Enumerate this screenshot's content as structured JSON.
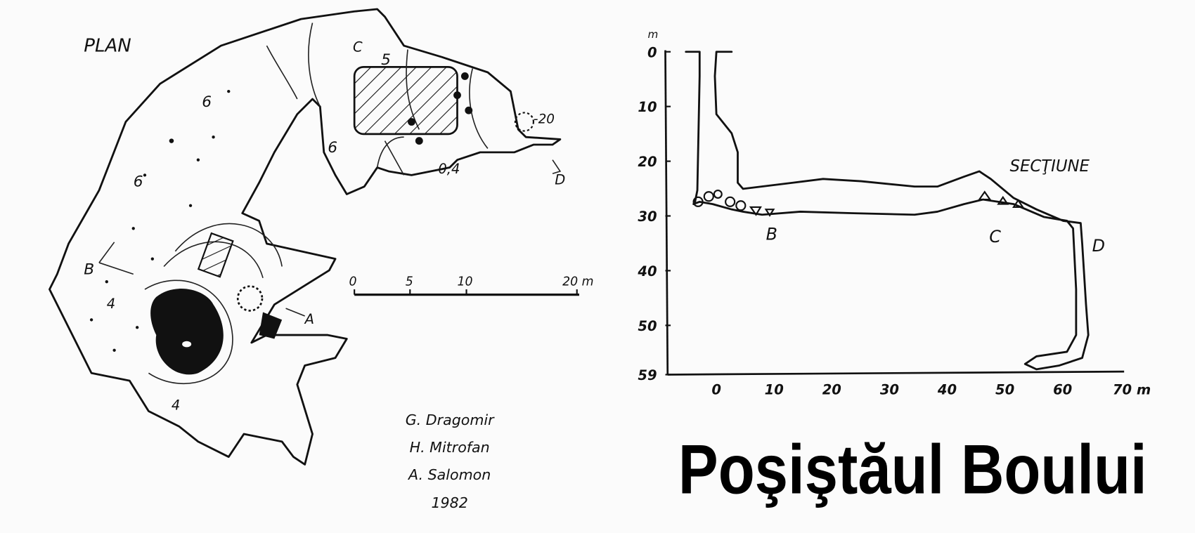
{
  "title": "Poşiştăul Boului",
  "plan": {
    "label": "PLAN",
    "marker_labels": [
      "B",
      "C",
      "D",
      "A"
    ],
    "depth_labels": [
      "6",
      "6",
      "6",
      "5",
      "4",
      "4",
      "0,4",
      "-20"
    ],
    "scale_bar": {
      "ticks": [
        "0",
        "5",
        "10",
        "20 m"
      ]
    }
  },
  "section": {
    "label": "SECŢIUNE",
    "y_unit": "m",
    "y_ticks": [
      "0",
      "10",
      "20",
      "30",
      "40",
      "50",
      "59"
    ],
    "x_ticks": [
      "0",
      "10",
      "20",
      "30",
      "40",
      "50",
      "60",
      "70 m"
    ],
    "marker_labels": [
      "B",
      "C",
      "D"
    ]
  },
  "credits": {
    "authors": [
      "G. Dragomir",
      "H. Mitrofan",
      "A. Salomon"
    ],
    "year": "1982"
  },
  "colors": {
    "ink": "#111111",
    "paper": "#fbfbfb"
  }
}
